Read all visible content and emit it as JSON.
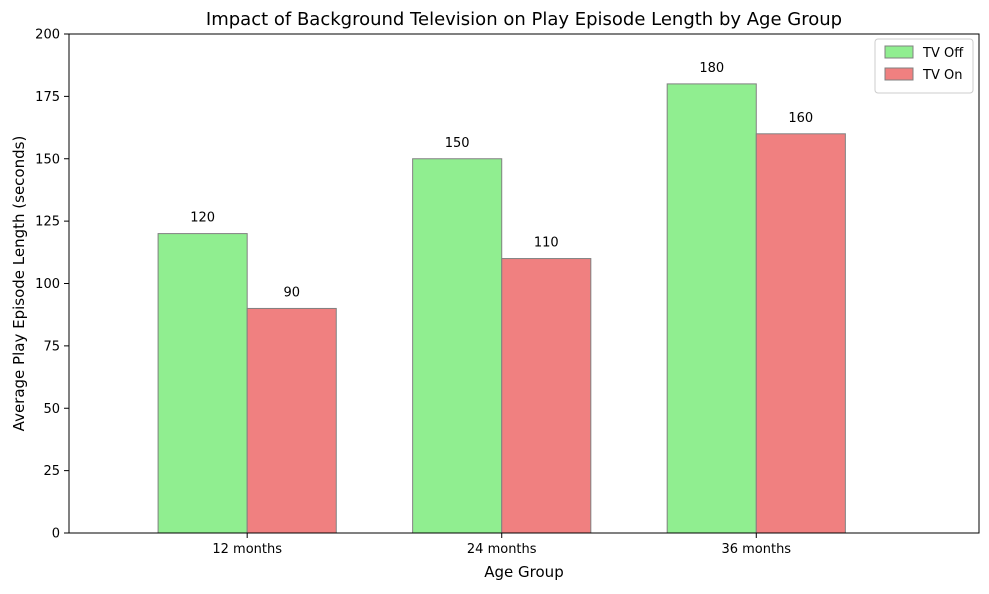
{
  "chart_data": {
    "type": "bar",
    "title": "Impact of Background Television on Play Episode Length by Age Group",
    "xlabel": "Age Group",
    "ylabel": "Average Play Episode Length (seconds)",
    "categories": [
      "12 months",
      "24 months",
      "36 months"
    ],
    "series": [
      {
        "name": "TV Off",
        "values": [
          120,
          150,
          180
        ],
        "color": "#90ee90"
      },
      {
        "name": "TV On",
        "values": [
          90,
          110,
          160
        ],
        "color": "#f08080"
      }
    ],
    "ylim": [
      0,
      200
    ],
    "yticks": [
      0,
      25,
      50,
      75,
      100,
      125,
      150,
      175,
      200
    ],
    "ytick_labels": [
      "0",
      "25",
      "50",
      "75",
      "100",
      "125",
      "150",
      "175",
      "200"
    ],
    "data_labels": [
      [
        "120",
        "150",
        "180"
      ],
      [
        "90",
        "110",
        "160"
      ]
    ],
    "grid": false,
    "legend_position": "top-right",
    "bar_edge_color": "#808080"
  }
}
